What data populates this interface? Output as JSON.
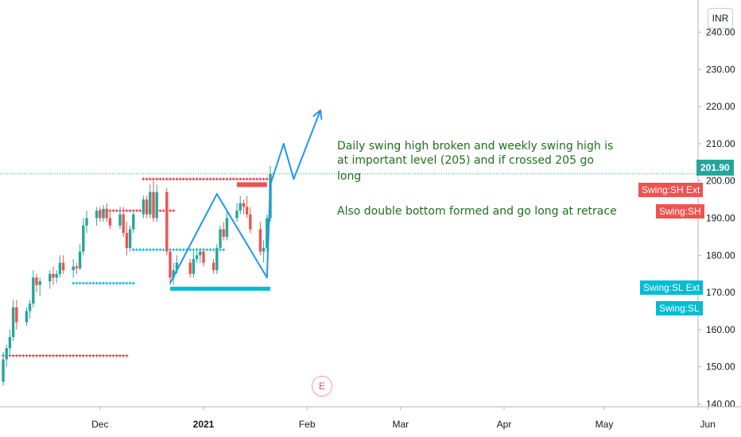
{
  "currency_button": "INR",
  "current_price_label": "201.90",
  "annotations": {
    "line1": "Daily swing high broken and weekly swing high is",
    "line2": "at important level (205) and if crossed 205 go",
    "line3": "long",
    "line4": "Also double bottom formed and go long at retrace"
  },
  "tags": {
    "sh_ext": "Swing:SH Ext",
    "sh": "Swing:SH",
    "sl_ext": "Swing:SL Ext",
    "sl": "Swing:SL"
  },
  "earnings_marker": "E",
  "colors": {
    "up": "#26a69a",
    "down": "#ef5350",
    "drawing": "#2196f3",
    "support": "#00bcd4",
    "resistance_dots": "#f23645",
    "annotation_text": "#1e6f1e"
  },
  "chart_data": {
    "type": "candlestick",
    "currency": "INR",
    "yticks": [
      "140.00",
      "150.00",
      "160.00",
      "170.00",
      "180.00",
      "190.00",
      "200.00",
      "210.00",
      "220.00",
      "230.00",
      "240.00"
    ],
    "xticks": [
      {
        "label": "Dec",
        "date": "2020-12-01",
        "bold": false
      },
      {
        "label": "2021",
        "date": "2021-01-01",
        "bold": true
      },
      {
        "label": "Feb",
        "date": "2021-02-01",
        "bold": false
      },
      {
        "label": "Mar",
        "date": "2021-03-01",
        "bold": false
      },
      {
        "label": "Apr",
        "date": "2021-04-01",
        "bold": false
      },
      {
        "label": "May",
        "date": "2021-05-01",
        "bold": false
      },
      {
        "label": "Jun",
        "date": "2021-06-01",
        "bold": false
      }
    ],
    "ylim": [
      139,
      242
    ],
    "current_price": 201.9,
    "candles": [
      {
        "d": "2020-11-02",
        "o": 146.0,
        "h": 154.0,
        "l": 145.0,
        "c": 152.0
      },
      {
        "d": "2020-11-03",
        "o": 152.0,
        "h": 156.0,
        "l": 150.0,
        "c": 155.0
      },
      {
        "d": "2020-11-04",
        "o": 155.0,
        "h": 160.0,
        "l": 153.0,
        "c": 158.0
      },
      {
        "d": "2020-11-05",
        "o": 158.0,
        "h": 168.0,
        "l": 157.0,
        "c": 166.0
      },
      {
        "d": "2020-11-06",
        "o": 166.0,
        "h": 168.0,
        "l": 160.0,
        "c": 162.0
      },
      {
        "d": "2020-11-09",
        "o": 162.0,
        "h": 166.0,
        "l": 161.0,
        "c": 165.0
      },
      {
        "d": "2020-11-10",
        "o": 165.0,
        "h": 168.0,
        "l": 163.0,
        "c": 167.0
      },
      {
        "d": "2020-11-11",
        "o": 167.0,
        "h": 176.0,
        "l": 166.0,
        "c": 174.0
      },
      {
        "d": "2020-11-12",
        "o": 174.0,
        "h": 175.0,
        "l": 170.0,
        "c": 172.0
      },
      {
        "d": "2020-11-13",
        "o": 172.0,
        "h": 174.0,
        "l": 169.0,
        "c": 173.0
      },
      {
        "d": "2020-11-16",
        "o": 173.0,
        "h": 176.0,
        "l": 171.0,
        "c": 175.0
      },
      {
        "d": "2020-11-17",
        "o": 175.0,
        "h": 177.0,
        "l": 172.0,
        "c": 174.0
      },
      {
        "d": "2020-11-18",
        "o": 174.0,
        "h": 176.0,
        "l": 172.5,
        "c": 175.0
      },
      {
        "d": "2020-11-19",
        "o": 175.0,
        "h": 180.0,
        "l": 174.0,
        "c": 178.0
      },
      {
        "d": "2020-11-20",
        "o": 178.0,
        "h": 180.0,
        "l": 175.0,
        "c": 176.0
      },
      {
        "d": "2020-11-23",
        "o": 176.0,
        "h": 179.0,
        "l": 174.0,
        "c": 177.0
      },
      {
        "d": "2020-11-24",
        "o": 177.0,
        "h": 178.0,
        "l": 175.0,
        "c": 176.5
      },
      {
        "d": "2020-11-25",
        "o": 176.5,
        "h": 183.0,
        "l": 176.0,
        "c": 181.0
      },
      {
        "d": "2020-11-26",
        "o": 181.0,
        "h": 190.0,
        "l": 180.0,
        "c": 188.0
      },
      {
        "d": "2020-11-27",
        "o": 188.0,
        "h": 192.0,
        "l": 186.0,
        "c": 190.0
      },
      {
        "d": "2020-11-30",
        "o": 190.0,
        "h": 193.0,
        "l": 188.0,
        "c": 192.0
      },
      {
        "d": "2020-12-01",
        "o": 192.0,
        "h": 193.0,
        "l": 189.0,
        "c": 190.0
      },
      {
        "d": "2020-12-02",
        "o": 190.0,
        "h": 193.5,
        "l": 189.0,
        "c": 192.5
      },
      {
        "d": "2020-12-03",
        "o": 192.5,
        "h": 194.0,
        "l": 189.0,
        "c": 190.0
      },
      {
        "d": "2020-12-04",
        "o": 190.0,
        "h": 192.0,
        "l": 187.0,
        "c": 188.0
      },
      {
        "d": "2020-12-07",
        "o": 188.0,
        "h": 193.0,
        "l": 187.0,
        "c": 191.0
      },
      {
        "d": "2020-12-08",
        "o": 191.0,
        "h": 193.0,
        "l": 185.0,
        "c": 186.0
      },
      {
        "d": "2020-12-09",
        "o": 186.0,
        "h": 189.0,
        "l": 180.0,
        "c": 182.0
      },
      {
        "d": "2020-12-10",
        "o": 182.0,
        "h": 188.0,
        "l": 181.0,
        "c": 187.0
      },
      {
        "d": "2020-12-11",
        "o": 187.0,
        "h": 192.0,
        "l": 186.0,
        "c": 191.0
      },
      {
        "d": "2020-12-14",
        "o": 191.0,
        "h": 196.0,
        "l": 190.0,
        "c": 195.0
      },
      {
        "d": "2020-12-15",
        "o": 195.0,
        "h": 196.0,
        "l": 190.0,
        "c": 191.0
      },
      {
        "d": "2020-12-16",
        "o": 191.0,
        "h": 199.0,
        "l": 190.0,
        "c": 197.0
      },
      {
        "d": "2020-12-17",
        "o": 197.0,
        "h": 200.0,
        "l": 189.0,
        "c": 190.0
      },
      {
        "d": "2020-12-18",
        "o": 190.0,
        "h": 199.0,
        "l": 189.0,
        "c": 197.0
      },
      {
        "d": "2020-12-21",
        "o": 197.0,
        "h": 198.0,
        "l": 180.0,
        "c": 181.0
      },
      {
        "d": "2020-12-22",
        "o": 181.0,
        "h": 182.0,
        "l": 172.0,
        "c": 174.0
      },
      {
        "d": "2020-12-23",
        "o": 174.0,
        "h": 178.0,
        "l": 172.0,
        "c": 176.0
      },
      {
        "d": "2020-12-24",
        "o": 176.0,
        "h": 180.0,
        "l": 175.0,
        "c": 178.0
      },
      {
        "d": "2020-12-28",
        "o": 178.0,
        "h": 179.0,
        "l": 174.0,
        "c": 175.0
      },
      {
        "d": "2020-12-29",
        "o": 175.0,
        "h": 181.0,
        "l": 174.0,
        "c": 179.0
      },
      {
        "d": "2020-12-30",
        "o": 179.0,
        "h": 182.0,
        "l": 178.0,
        "c": 180.0
      },
      {
        "d": "2020-12-31",
        "o": 180.0,
        "h": 182.0,
        "l": 178.0,
        "c": 181.0
      },
      {
        "d": "2021-01-01",
        "o": 181.0,
        "h": 182.0,
        "l": 177.0,
        "c": 178.0
      },
      {
        "d": "2021-01-04",
        "o": 178.0,
        "h": 179.0,
        "l": 175.0,
        "c": 176.0
      },
      {
        "d": "2021-01-05",
        "o": 176.0,
        "h": 183.0,
        "l": 175.0,
        "c": 182.0
      },
      {
        "d": "2021-01-06",
        "o": 182.0,
        "h": 188.0,
        "l": 181.0,
        "c": 187.0
      },
      {
        "d": "2021-01-07",
        "o": 187.0,
        "h": 189.0,
        "l": 184.0,
        "c": 185.0
      },
      {
        "d": "2021-01-08",
        "o": 185.0,
        "h": 192.0,
        "l": 184.0,
        "c": 190.0
      },
      {
        "d": "2021-01-11",
        "o": 190.0,
        "h": 194.0,
        "l": 189.0,
        "c": 192.0
      },
      {
        "d": "2021-01-12",
        "o": 192.0,
        "h": 196.0,
        "l": 191.0,
        "c": 194.0
      },
      {
        "d": "2021-01-13",
        "o": 194.0,
        "h": 195.0,
        "l": 191.0,
        "c": 193.0
      },
      {
        "d": "2021-01-14",
        "o": 193.0,
        "h": 196.0,
        "l": 190.0,
        "c": 191.0
      },
      {
        "d": "2021-01-15",
        "o": 191.0,
        "h": 193.0,
        "l": 186.0,
        "c": 187.0
      },
      {
        "d": "2021-01-18",
        "o": 187.0,
        "h": 189.0,
        "l": 180.0,
        "c": 181.0
      },
      {
        "d": "2021-01-19",
        "o": 181.0,
        "h": 184.0,
        "l": 178.0,
        "c": 182.0
      },
      {
        "d": "2021-01-20",
        "o": 182.0,
        "h": 191.0,
        "l": 181.0,
        "c": 190.0
      },
      {
        "d": "2021-01-21",
        "o": 190.0,
        "h": 204.0,
        "l": 189.0,
        "c": 201.9
      }
    ],
    "support_line": {
      "from": "2020-12-22",
      "to": "2021-01-21",
      "y": 171.0
    },
    "resistance_box": {
      "from": "2021-01-11",
      "to": "2021-01-20",
      "y": 199.0
    },
    "cross_levels": [
      {
        "from": "2020-11-02",
        "to": "2020-12-09",
        "y": 153.0,
        "color": "#f23645"
      },
      {
        "from": "2020-11-23",
        "to": "2020-12-11",
        "y": 172.5,
        "color": "#00bcd4"
      },
      {
        "from": "2020-12-01",
        "to": "2020-12-23",
        "y": 192.0,
        "color": "#f23645"
      },
      {
        "from": "2020-12-11",
        "to": "2021-01-07",
        "y": 181.5,
        "color": "#00bcd4"
      },
      {
        "from": "2020-12-14",
        "to": "2021-01-20",
        "y": 200.5,
        "color": "#f23645"
      }
    ],
    "double_bottom_path": [
      {
        "d": "2020-12-22",
        "y": 172.5
      },
      {
        "d": "2021-01-05",
        "y": 196.5
      },
      {
        "d": "2021-01-20",
        "y": 174.0
      },
      {
        "d": "2021-01-21",
        "y": 199.0
      },
      {
        "d": "2021-01-25",
        "y": 210.0
      },
      {
        "d": "2021-01-28",
        "y": 200.5
      },
      {
        "d": "2021-02-05",
        "y": 219.0
      }
    ]
  }
}
